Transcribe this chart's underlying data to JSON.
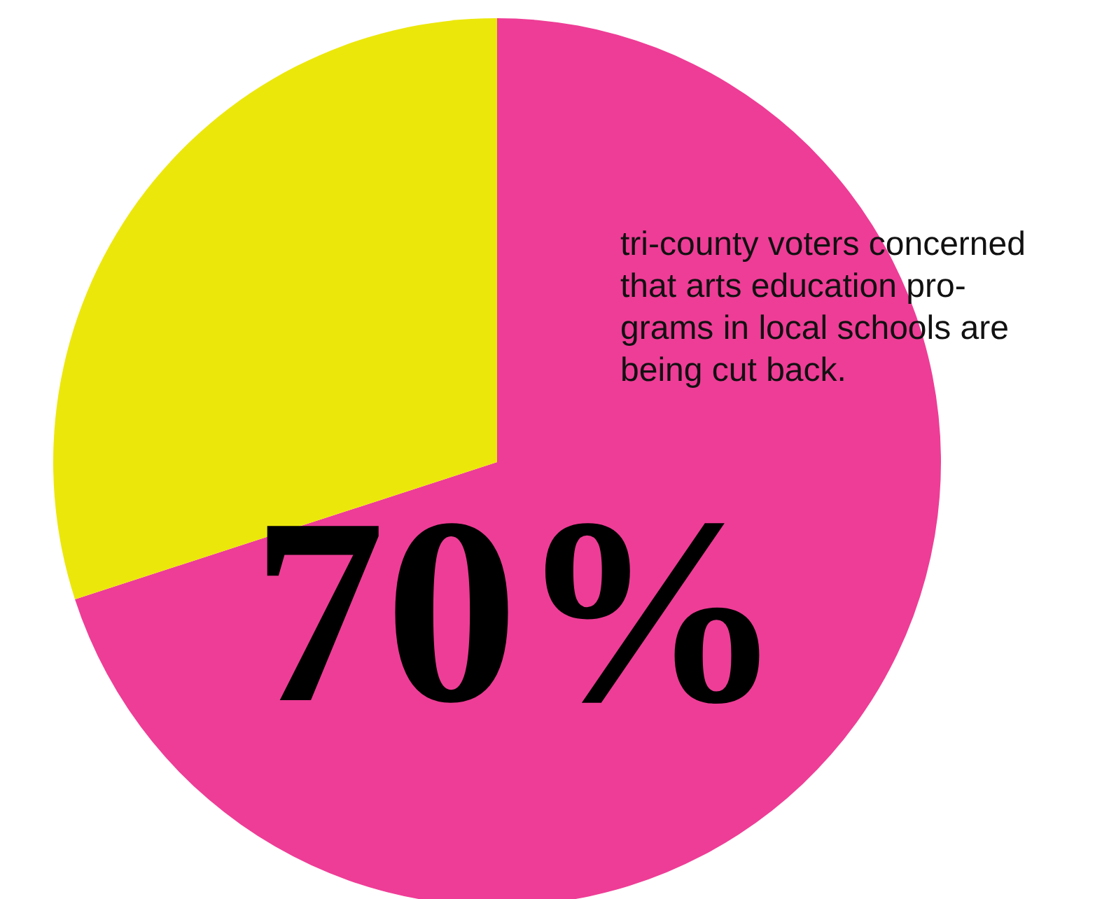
{
  "chart_data": {
    "type": "pie",
    "categories": [
      null,
      null
    ],
    "values": [
      70,
      30
    ],
    "colors": [
      "#ee3d96",
      "#ece70b"
    ],
    "value_labels": [
      "70%",
      null
    ],
    "annotations": [
      "tri-county voters concerned\nthat arts education pro-\ngrams in local schools are\nbeing cut back."
    ]
  }
}
